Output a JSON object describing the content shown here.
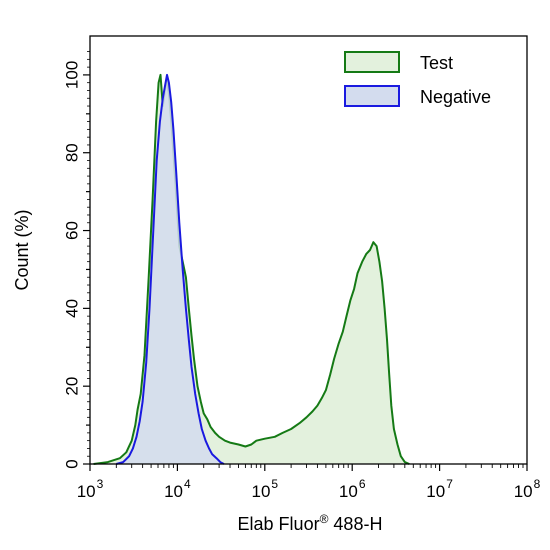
{
  "chart_data": {
    "type": "area",
    "x_scale": "log",
    "xlim": [
      1000,
      100000000
    ],
    "ylim": [
      0,
      110
    ],
    "x_tick_labels": [
      {
        "value": 1000,
        "base": "10",
        "exp": "3"
      },
      {
        "value": 10000,
        "base": "10",
        "exp": "4"
      },
      {
        "value": 100000,
        "base": "10",
        "exp": "5"
      },
      {
        "value": 1000000,
        "base": "10",
        "exp": "6"
      },
      {
        "value": 10000000,
        "base": "10",
        "exp": "7"
      },
      {
        "value": 100000000,
        "base": "10",
        "exp": "8"
      }
    ],
    "y_ticks": [
      0,
      20,
      40,
      60,
      80,
      100
    ],
    "y_tick_labels": [
      "0",
      "20",
      "40",
      "60",
      "80",
      "100"
    ],
    "xlabel_main": "Elab Fluor",
    "xlabel_sup": "®",
    "xlabel_tail": " 488-H",
    "ylabel": "Count  (%)",
    "legend_position": "top-right",
    "grid": false,
    "series": [
      {
        "name": "Test",
        "stroke": "#157a15",
        "fill": "#e3f1dd",
        "points": [
          [
            1100,
            0
          ],
          [
            1600,
            0.5
          ],
          [
            2200,
            1.5
          ],
          [
            2600,
            3
          ],
          [
            3000,
            6
          ],
          [
            3300,
            10
          ],
          [
            3500,
            14
          ],
          [
            3800,
            18
          ],
          [
            4200,
            28
          ],
          [
            4700,
            48
          ],
          [
            5200,
            68
          ],
          [
            5700,
            88
          ],
          [
            6100,
            98
          ],
          [
            6400,
            100
          ],
          [
            6800,
            92
          ],
          [
            7200,
            96
          ],
          [
            7600,
            99
          ],
          [
            8100,
            94
          ],
          [
            8700,
            85
          ],
          [
            9500,
            72
          ],
          [
            10500,
            56
          ],
          [
            11500,
            52
          ],
          [
            12500,
            48
          ],
          [
            13500,
            40
          ],
          [
            14500,
            33
          ],
          [
            15500,
            27
          ],
          [
            17000,
            20
          ],
          [
            18500,
            16
          ],
          [
            20000,
            13
          ],
          [
            22000,
            11.5
          ],
          [
            24000,
            9.5
          ],
          [
            27000,
            8
          ],
          [
            30000,
            7
          ],
          [
            35000,
            6
          ],
          [
            40000,
            5.5
          ],
          [
            50000,
            5
          ],
          [
            60000,
            4.5
          ],
          [
            70000,
            5
          ],
          [
            80000,
            6
          ],
          [
            100000,
            6.5
          ],
          [
            130000,
            7
          ],
          [
            160000,
            8
          ],
          [
            200000,
            9
          ],
          [
            250000,
            10.5
          ],
          [
            300000,
            12
          ],
          [
            350000,
            13.5
          ],
          [
            400000,
            15
          ],
          [
            450000,
            17
          ],
          [
            500000,
            19
          ],
          [
            560000,
            23
          ],
          [
            620000,
            27
          ],
          [
            700000,
            31
          ],
          [
            780000,
            34
          ],
          [
            860000,
            38
          ],
          [
            950000,
            42
          ],
          [
            1050000,
            45
          ],
          [
            1150000,
            49
          ],
          [
            1300000,
            52
          ],
          [
            1450000,
            54
          ],
          [
            1600000,
            55
          ],
          [
            1750000,
            57
          ],
          [
            1900000,
            56
          ],
          [
            2050000,
            52
          ],
          [
            2200000,
            47
          ],
          [
            2350000,
            40
          ],
          [
            2500000,
            32
          ],
          [
            2650000,
            23
          ],
          [
            2800000,
            15
          ],
          [
            3000000,
            9
          ],
          [
            3300000,
            5
          ],
          [
            3600000,
            2
          ],
          [
            4000000,
            0.5
          ],
          [
            4500000,
            0
          ]
        ]
      },
      {
        "name": "Negative",
        "stroke": "#1a1ae0",
        "fill": "#d3dcee",
        "points": [
          [
            2000,
            0
          ],
          [
            2400,
            0.5
          ],
          [
            2800,
            2
          ],
          [
            3100,
            4
          ],
          [
            3400,
            7
          ],
          [
            3700,
            11
          ],
          [
            4000,
            16
          ],
          [
            4400,
            26
          ],
          [
            4800,
            40
          ],
          [
            5300,
            60
          ],
          [
            5800,
            78
          ],
          [
            6300,
            88
          ],
          [
            6800,
            94
          ],
          [
            7200,
            97
          ],
          [
            7600,
            100
          ],
          [
            8000,
            98
          ],
          [
            8500,
            93
          ],
          [
            9000,
            86
          ],
          [
            9700,
            75
          ],
          [
            10500,
            62
          ],
          [
            11500,
            50
          ],
          [
            12500,
            40
          ],
          [
            13500,
            32
          ],
          [
            14500,
            25
          ],
          [
            16000,
            18
          ],
          [
            17500,
            13
          ],
          [
            19000,
            9
          ],
          [
            21000,
            6
          ],
          [
            23000,
            4
          ],
          [
            25000,
            2.5
          ],
          [
            28000,
            1.5
          ],
          [
            31000,
            0.5
          ],
          [
            34000,
            0
          ]
        ]
      }
    ]
  }
}
